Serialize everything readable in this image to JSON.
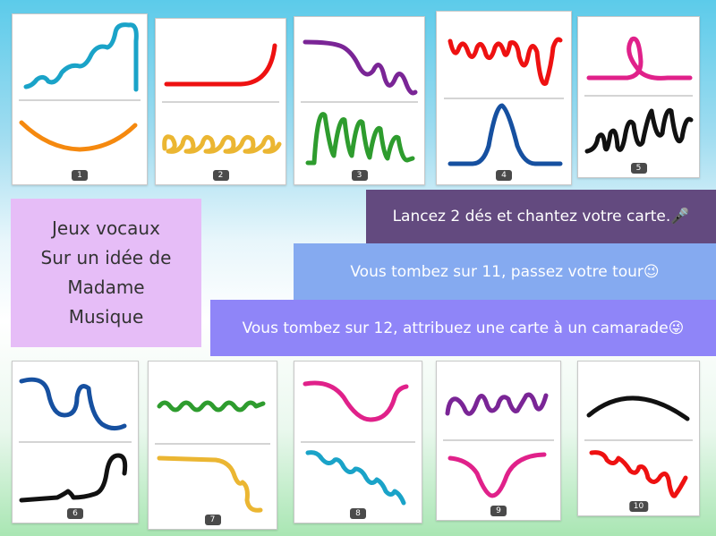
{
  "title": {
    "lines": [
      "Jeux vocaux",
      "Sur un idée de",
      "Madame",
      "Musique"
    ]
  },
  "banners": [
    {
      "text": "Lancez 2 dés et chantez votre carte.🎤",
      "color": "#634a7f"
    },
    {
      "text": "Vous tombez sur 11, passez votre tour😉",
      "color": "#85aaf0"
    },
    {
      "text": "Vous tombez sur 12, attribuez une carte à un camarade😜",
      "color": "#8f85f8"
    }
  ],
  "cards": [
    {
      "number": "1",
      "top_color": "#1aa3c8",
      "bottom_color": "#f5890f"
    },
    {
      "number": "2",
      "top_color": "#ee1111",
      "bottom_color": "#ebb632"
    },
    {
      "number": "3",
      "top_color": "#7a2596",
      "bottom_color": "#2e9c2e"
    },
    {
      "number": "4",
      "top_color": "#ee1111",
      "bottom_color": "#1650a0"
    },
    {
      "number": "5",
      "top_color": "#e0218a",
      "bottom_color": "#111111"
    },
    {
      "number": "6",
      "top_color": "#1650a0",
      "bottom_color": "#111111"
    },
    {
      "number": "7",
      "top_color": "#2e9c2e",
      "bottom_color": "#ebb632"
    },
    {
      "number": "8",
      "top_color": "#e0218a",
      "bottom_color": "#1aa3c8"
    },
    {
      "number": "9",
      "top_color": "#7a2596",
      "bottom_color": "#e0218a"
    },
    {
      "number": "10",
      "top_color": "#111111",
      "bottom_color": "#ee1111"
    }
  ]
}
